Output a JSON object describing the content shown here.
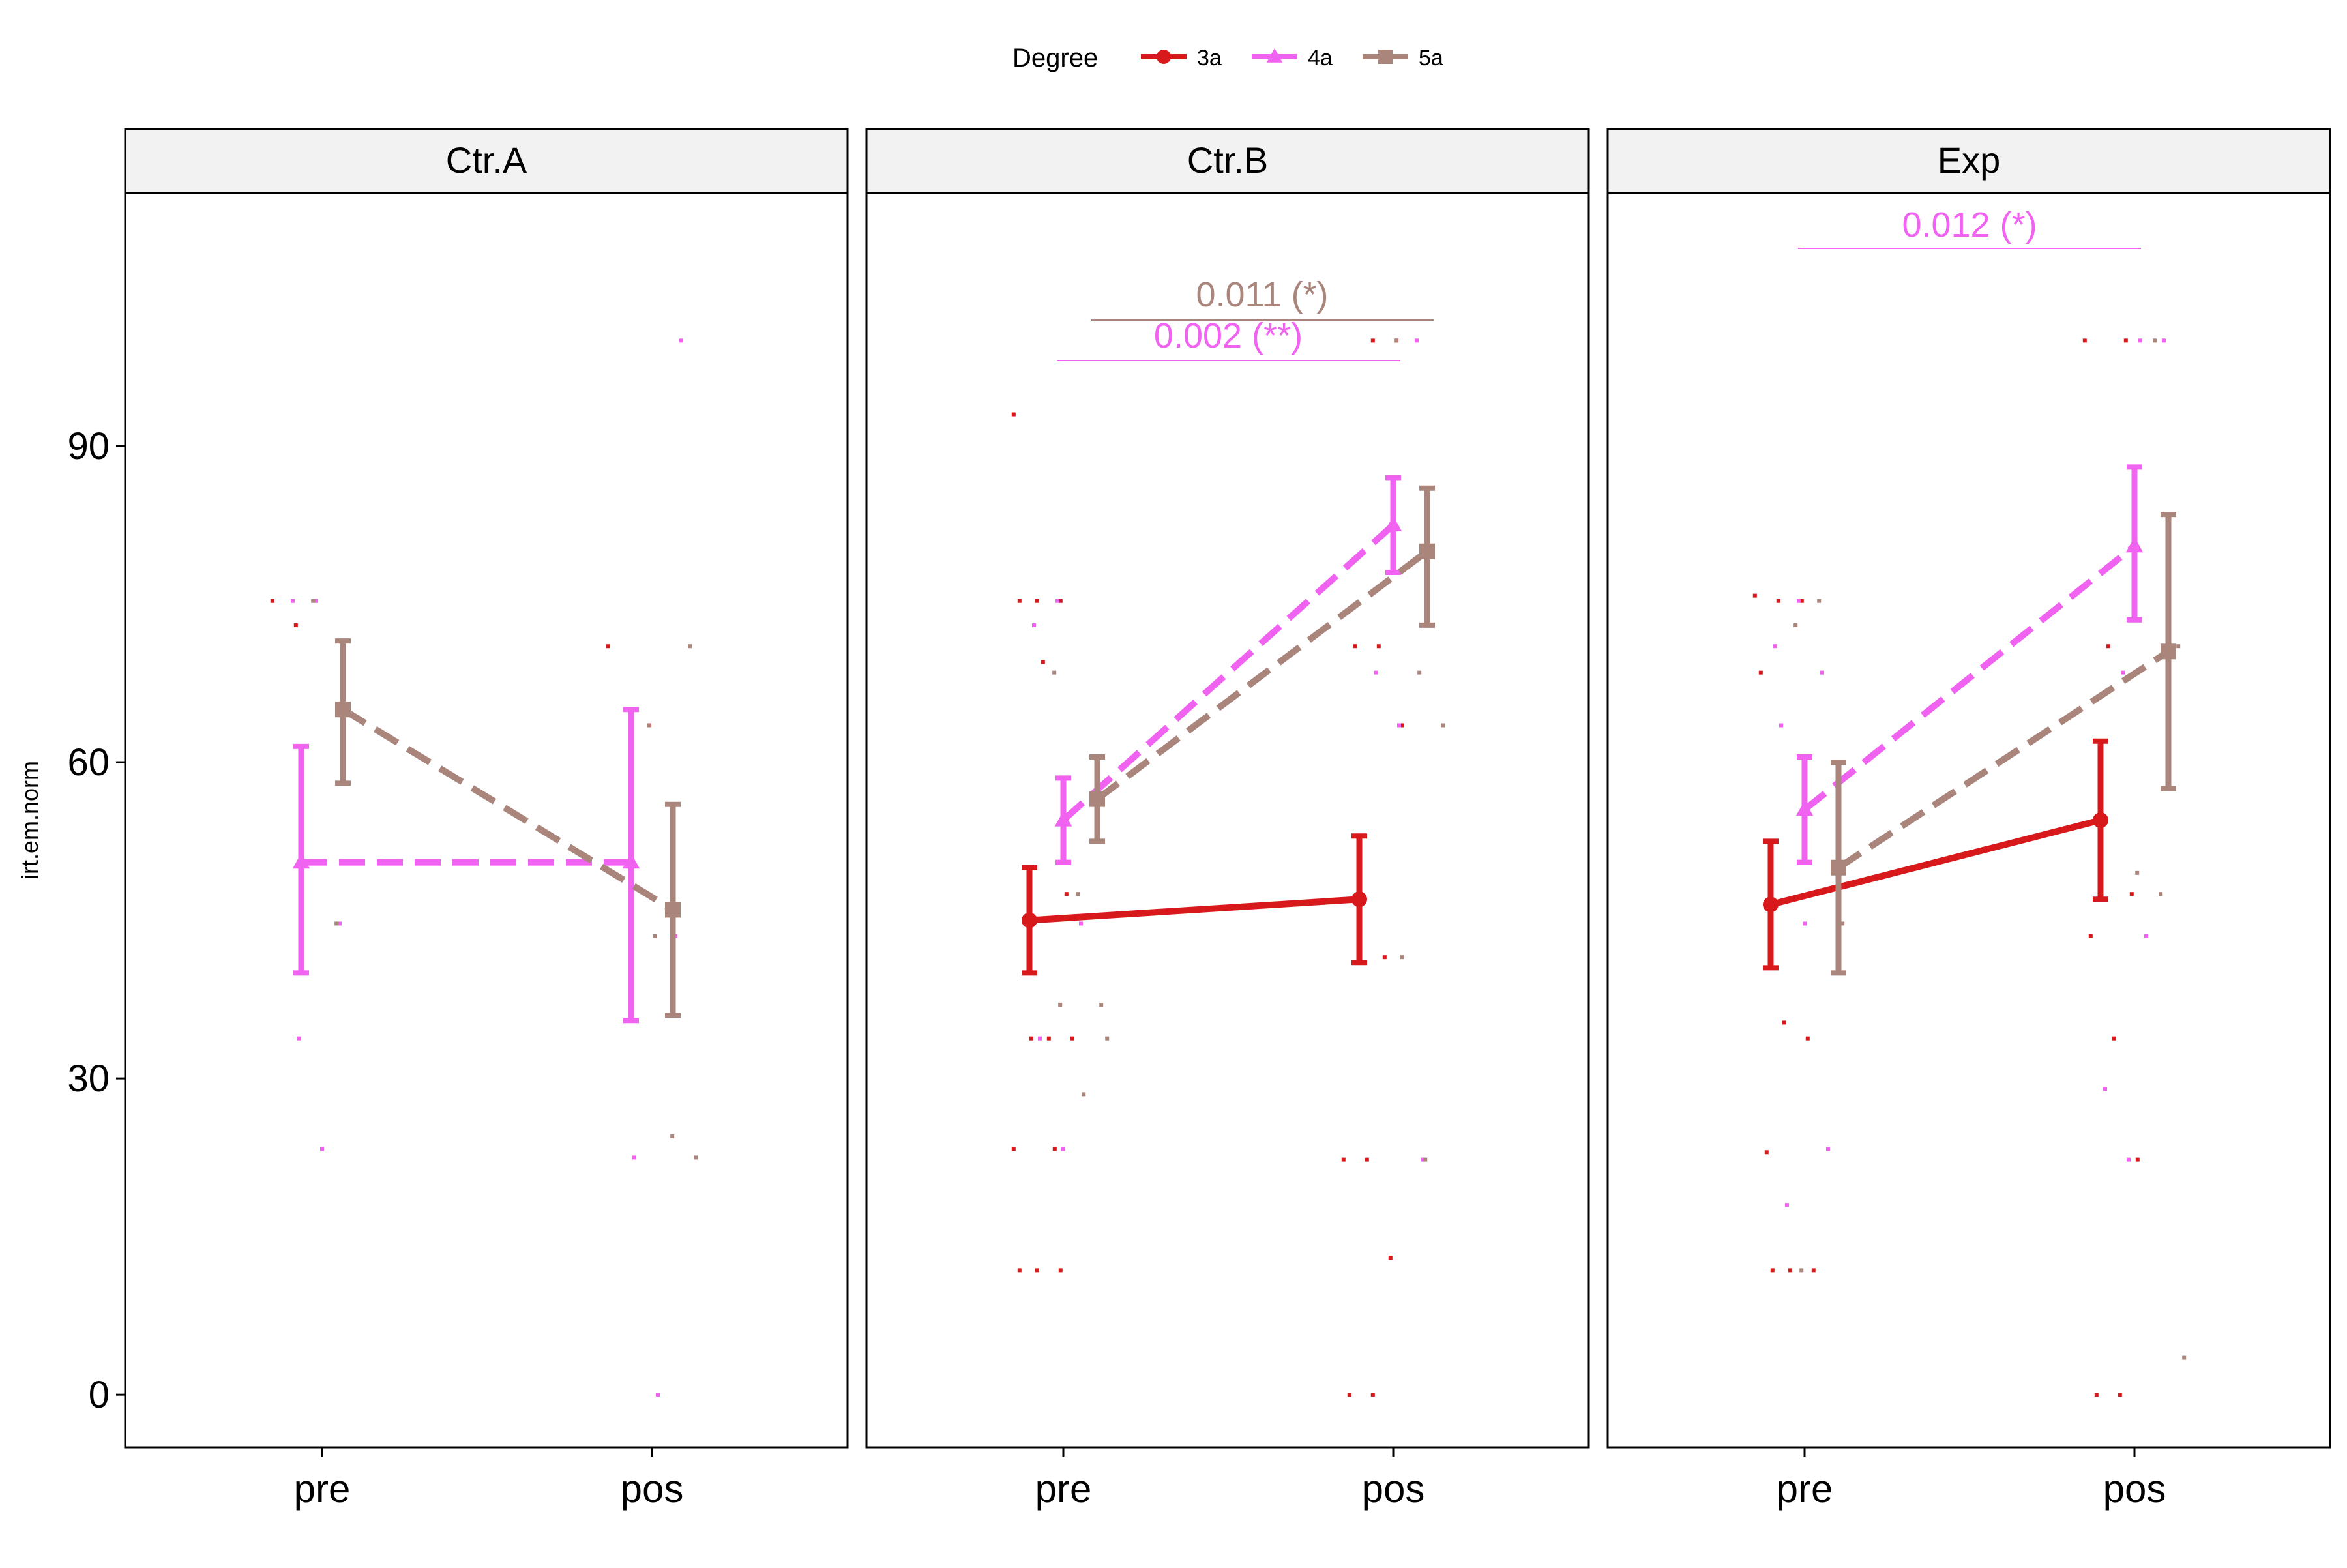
{
  "legend": {
    "title": "Degree",
    "entries": [
      {
        "label": "3a",
        "color": "#D7191C",
        "shape": "circle",
        "linetype": "solid"
      },
      {
        "label": "4a",
        "color": "#F062F0",
        "shape": "triangle",
        "linetype": "dashed"
      },
      {
        "label": "5a",
        "color": "#A9857B",
        "shape": "square",
        "linetype": "dashed"
      }
    ]
  },
  "chart_data": {
    "type": "line",
    "ylabel": "irt.em.norm",
    "xlabel": "",
    "categories": [
      "pre",
      "pos"
    ],
    "ylim": [
      -5,
      114
    ],
    "yticks": [
      0,
      30,
      60,
      90
    ],
    "grid": false,
    "legend_position": "top",
    "panels": [
      {
        "title": "Ctr.A",
        "series": [
          {
            "name": "4a",
            "values": [
              50.5,
              50.5
            ],
            "lower": [
              40,
              35.5
            ],
            "upper": [
              61.5,
              65
            ]
          },
          {
            "name": "5a",
            "values": [
              65,
              46
            ],
            "lower": [
              58,
              36
            ],
            "upper": [
              71.5,
              56
            ]
          }
        ],
        "points": {
          "3a": [
            [
              0,
              75.3
            ],
            [
              0,
              73
            ],
            [
              1,
              63.5
            ],
            [
              1,
              71
            ]
          ],
          "4a": [
            [
              0,
              75.3
            ],
            [
              0,
              75.3
            ],
            [
              0,
              44.7
            ],
            [
              0,
              33.8
            ],
            [
              0,
              23.3
            ],
            [
              1,
              43.5
            ],
            [
              1,
              22.5
            ],
            [
              1,
              0
            ],
            [
              1,
              100
            ]
          ],
          "5a": [
            [
              0,
              75.3
            ],
            [
              0,
              44.7
            ],
            [
              1,
              71
            ],
            [
              1,
              63.5
            ],
            [
              1,
              24.5
            ],
            [
              1,
              22.5
            ],
            [
              1,
              43.5
            ]
          ]
        },
        "annotations": []
      },
      {
        "title": "Ctr.B",
        "series": [
          {
            "name": "3a",
            "values": [
              45,
              47
            ],
            "lower": [
              40,
              41
            ],
            "upper": [
              50,
              53
            ]
          },
          {
            "name": "4a",
            "values": [
              54.5,
              82.5
            ],
            "lower": [
              50.5,
              78
            ],
            "upper": [
              58.5,
              87
            ]
          },
          {
            "name": "5a",
            "values": [
              56.5,
              80
            ],
            "lower": [
              52.5,
              73
            ],
            "upper": [
              60.5,
              86
            ]
          }
        ],
        "points": {
          "3a": [
            [
              0,
              93
            ],
            [
              0,
              75.3
            ],
            [
              0,
              75.3
            ],
            [
              0,
              75.3
            ],
            [
              0,
              69.5
            ],
            [
              0,
              47.5
            ],
            [
              0,
              44.7
            ],
            [
              0,
              33.8
            ],
            [
              0,
              33.8
            ],
            [
              0,
              33.8
            ],
            [
              0,
              23.3
            ],
            [
              0,
              23.3
            ],
            [
              0,
              11.8
            ],
            [
              0,
              11.8
            ],
            [
              0,
              11.8
            ],
            [
              1,
              100
            ],
            [
              1,
              100
            ],
            [
              1,
              71
            ],
            [
              1,
              71
            ],
            [
              1,
              63.5
            ],
            [
              1,
              47.5
            ],
            [
              1,
              41.5
            ],
            [
              1,
              22.3
            ],
            [
              1,
              22.3
            ],
            [
              1,
              13
            ],
            [
              1,
              0
            ],
            [
              1,
              0
            ]
          ],
          "4a": [
            [
              0,
              73
            ],
            [
              0,
              75.3
            ],
            [
              0,
              44.7
            ],
            [
              0,
              33.8
            ],
            [
              0,
              23.3
            ],
            [
              1,
              100
            ],
            [
              1,
              68.5
            ],
            [
              1,
              63.5
            ],
            [
              1,
              22.3
            ]
          ],
          "5a": [
            [
              0,
              68.5
            ],
            [
              0,
              47.5
            ],
            [
              0,
              37
            ],
            [
              0,
              37
            ],
            [
              0,
              28.5
            ],
            [
              0,
              33.8
            ],
            [
              1,
              100
            ],
            [
              1,
              68.5
            ],
            [
              1,
              63.5
            ],
            [
              1,
              41.5
            ],
            [
              1,
              22.3
            ]
          ]
        },
        "annotations": [
          {
            "text": "0.011 (*)",
            "series": "5a"
          },
          {
            "text": "0.002 (**)",
            "series": "4a"
          }
        ]
      },
      {
        "title": "Exp",
        "series": [
          {
            "name": "3a",
            "values": [
              46.5,
              54.5
            ],
            "lower": [
              40.5,
              47
            ],
            "upper": [
              52.5,
              62
            ]
          },
          {
            "name": "4a",
            "values": [
              55.5,
              80.5
            ],
            "lower": [
              50.5,
              73.5
            ],
            "upper": [
              60.5,
              88
            ]
          },
          {
            "name": "5a",
            "values": [
              50,
              70.5
            ],
            "lower": [
              40,
              57.5
            ],
            "upper": [
              60,
              83.5
            ]
          }
        ],
        "points": {
          "3a": [
            [
              0,
              75.8
            ],
            [
              0,
              75.3
            ],
            [
              0,
              75.3
            ],
            [
              0,
              68.5
            ],
            [
              0,
              35.3
            ],
            [
              0,
              33.8
            ],
            [
              0,
              23
            ],
            [
              0,
              11.8
            ],
            [
              0,
              11.8
            ],
            [
              0,
              11.8
            ],
            [
              1,
              100
            ],
            [
              1,
              100
            ],
            [
              1,
              71
            ],
            [
              1,
              47.5
            ],
            [
              1,
              43.5
            ],
            [
              1,
              33.8
            ],
            [
              1,
              22.3
            ],
            [
              1,
              0
            ],
            [
              1,
              0
            ]
          ],
          "4a": [
            [
              0,
              71
            ],
            [
              0,
              75.3
            ],
            [
              0,
              68.5
            ],
            [
              0,
              63.5
            ],
            [
              0,
              44.7
            ],
            [
              0,
              23.3
            ],
            [
              0,
              18
            ],
            [
              1,
              100
            ],
            [
              1,
              100
            ],
            [
              1,
              68.5
            ],
            [
              1,
              43.5
            ],
            [
              1,
              29
            ],
            [
              1,
              22.3
            ]
          ],
          "5a": [
            [
              0,
              73
            ],
            [
              0,
              75.3
            ],
            [
              0,
              44.7
            ],
            [
              0,
              11.8
            ],
            [
              1,
              100
            ],
            [
              1,
              71
            ],
            [
              1,
              49.5
            ],
            [
              1,
              47.5
            ],
            [
              1,
              3.5
            ]
          ]
        },
        "annotations": [
          {
            "text": "0.012 (*)",
            "series": "4a"
          }
        ]
      }
    ]
  }
}
